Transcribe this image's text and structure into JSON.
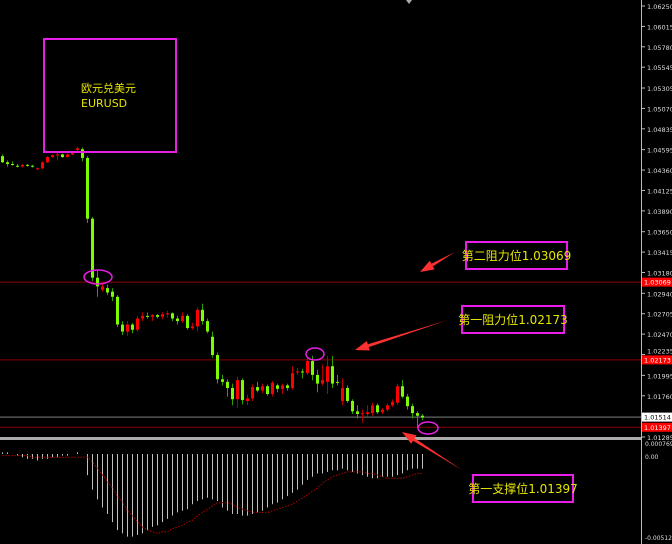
{
  "chart_data": {
    "type": "candlestick",
    "symbol_note": {
      "name_cn": "欧元兑美元",
      "symbol": "EURUSD"
    },
    "colors": {
      "bearish": "#7cfc00",
      "bullish": "#ff0000",
      "background": "#000000",
      "annotation": "#e81ee8",
      "annotation_text": "#e6e600",
      "arrow": "#ff3030",
      "level_line": "#8b0000",
      "histogram": "#c0c0c0",
      "signal": "#b00000"
    },
    "y_ticks": [
      "1.06250",
      "1.06015",
      "1.05780",
      "1.05545",
      "1.05305",
      "1.05070",
      "1.04835",
      "1.04595",
      "1.04360",
      "1.04125",
      "1.03890",
      "1.03650",
      "1.03415",
      "1.03180",
      "1.02940",
      "1.02705",
      "1.02470",
      "1.02235",
      "1.01995",
      "1.01760",
      "1.01285"
    ],
    "ylim": [
      1.0125,
      1.063
    ],
    "price_labels": [
      {
        "value": "1.03069",
        "style": "red"
      },
      {
        "value": "1.02173",
        "style": "red"
      },
      {
        "value": "1.01514",
        "style": "white"
      },
      {
        "value": "1.01397",
        "style": "red"
      }
    ],
    "levels": [
      1.03069,
      1.02173,
      1.01397
    ],
    "current_price": 1.01514,
    "ohlc": [
      [
        1.0452,
        1.0454,
        1.0444,
        1.0445
      ],
      [
        1.0445,
        1.0447,
        1.044,
        1.0443
      ],
      [
        1.0443,
        1.0446,
        1.0441,
        1.0442
      ],
      [
        1.0441,
        1.0443,
        1.0439,
        1.044
      ],
      [
        1.044,
        1.0443,
        1.0439,
        1.0442
      ],
      [
        1.0442,
        1.0443,
        1.044,
        1.0441
      ],
      [
        1.0441,
        1.0442,
        1.0439,
        1.044
      ],
      [
        1.0437,
        1.0439,
        1.0436,
        1.0438
      ],
      [
        1.0438,
        1.0446,
        1.0437,
        1.0445
      ],
      [
        1.0445,
        1.0452,
        1.0444,
        1.0451
      ],
      [
        1.0451,
        1.0454,
        1.045,
        1.0453
      ],
      [
        1.0453,
        1.0456,
        1.0447,
        1.0454
      ],
      [
        1.0454,
        1.0455,
        1.045,
        1.0451
      ],
      [
        1.0451,
        1.0455,
        1.045,
        1.0454
      ],
      [
        1.0454,
        1.0458,
        1.0453,
        1.0457
      ],
      [
        1.0459,
        1.0463,
        1.0456,
        1.0461
      ],
      [
        1.046,
        1.0462,
        1.0446,
        1.045
      ],
      [
        1.045,
        1.0452,
        1.0375,
        1.038
      ],
      [
        1.038,
        1.0382,
        1.0308,
        1.0312
      ],
      [
        1.0312,
        1.032,
        1.029,
        1.0302
      ],
      [
        1.0298,
        1.0306,
        1.0296,
        1.0302
      ],
      [
        1.03,
        1.0304,
        1.0292,
        1.0295
      ],
      [
        1.0296,
        1.03,
        1.0285,
        1.029
      ],
      [
        1.029,
        1.0292,
        1.0255,
        1.0258
      ],
      [
        1.0258,
        1.0262,
        1.0246,
        1.025
      ],
      [
        1.025,
        1.0262,
        1.0245,
        1.0258
      ],
      [
        1.0258,
        1.026,
        1.0248,
        1.0252
      ],
      [
        1.0252,
        1.0268,
        1.025,
        1.0265
      ],
      [
        1.0265,
        1.0272,
        1.0262,
        1.0268
      ],
      [
        1.0268,
        1.0272,
        1.0265,
        1.0267
      ],
      [
        1.0267,
        1.027,
        1.0262,
        1.0269
      ],
      [
        1.0269,
        1.027,
        1.0265,
        1.0267
      ],
      [
        1.0267,
        1.0272,
        1.0264,
        1.027
      ],
      [
        1.027,
        1.0274,
        1.0266,
        1.0271
      ],
      [
        1.0271,
        1.0272,
        1.0262,
        1.0265
      ],
      [
        1.0265,
        1.0268,
        1.0258,
        1.0262
      ],
      [
        1.0262,
        1.0272,
        1.026,
        1.0268
      ],
      [
        1.0268,
        1.027,
        1.0252,
        1.0254
      ],
      [
        1.0254,
        1.026,
        1.0252,
        1.0256
      ],
      [
        1.0256,
        1.0278,
        1.025,
        1.0275
      ],
      [
        1.0275,
        1.0282,
        1.0258,
        1.0262
      ],
      [
        1.0262,
        1.0265,
        1.0248,
        1.025
      ],
      [
        1.0244,
        1.025,
        1.022,
        1.0223
      ],
      [
        1.0223,
        1.0226,
        1.019,
        1.0195
      ],
      [
        1.0195,
        1.02,
        1.0188,
        1.0192
      ],
      [
        1.0192,
        1.0195,
        1.0175,
        1.0185
      ],
      [
        1.0185,
        1.019,
        1.0165,
        1.0172
      ],
      [
        1.0172,
        1.0198,
        1.0162,
        1.0194
      ],
      [
        1.0194,
        1.0196,
        1.0166,
        1.0171
      ],
      [
        1.017,
        1.0177,
        1.0165,
        1.0173
      ],
      [
        1.0173,
        1.0189,
        1.017,
        1.0186
      ],
      [
        1.0186,
        1.0192,
        1.018,
        1.0182
      ],
      [
        1.0182,
        1.019,
        1.0179,
        1.0187
      ],
      [
        1.0187,
        1.0189,
        1.0176,
        1.0178
      ],
      [
        1.0178,
        1.0193,
        1.0175,
        1.0191
      ],
      [
        1.0188,
        1.019,
        1.018,
        1.0184
      ],
      [
        1.0184,
        1.019,
        1.0178,
        1.0188
      ],
      [
        1.0188,
        1.019,
        1.0182,
        1.0185
      ],
      [
        1.0185,
        1.021,
        1.0183,
        1.0202
      ],
      [
        1.0204,
        1.0208,
        1.02,
        1.0204
      ],
      [
        1.0204,
        1.0207,
        1.0196,
        1.0203
      ],
      [
        1.0202,
        1.022,
        1.02,
        1.0216
      ],
      [
        1.0216,
        1.0222,
        1.0194,
        1.02
      ],
      [
        1.02,
        1.0206,
        1.018,
        1.019
      ],
      [
        1.019,
        1.0212,
        1.0188,
        1.0194
      ],
      [
        1.0192,
        1.0222,
        1.0178,
        1.021
      ],
      [
        1.021,
        1.0222,
        1.0185,
        1.019
      ],
      [
        1.0192,
        1.02,
        1.0188,
        1.0191
      ],
      [
        1.017,
        1.0196,
        1.0165,
        1.0185
      ],
      [
        1.0185,
        1.0188,
        1.0168,
        1.017
      ],
      [
        1.017,
        1.0172,
        1.0155,
        1.0158
      ],
      [
        1.0158,
        1.0165,
        1.015,
        1.0155
      ],
      [
        1.0155,
        1.016,
        1.0145,
        1.0156
      ],
      [
        1.0155,
        1.0165,
        1.0152,
        1.0157
      ],
      [
        1.0156,
        1.0168,
        1.0153,
        1.0165
      ],
      [
        1.0165,
        1.0167,
        1.0155,
        1.0157
      ],
      [
        1.0157,
        1.0162,
        1.0155,
        1.016
      ],
      [
        1.016,
        1.0167,
        1.0158,
        1.0165
      ],
      [
        1.0165,
        1.0172,
        1.0163,
        1.0169
      ],
      [
        1.0168,
        1.019,
        1.0166,
        1.0187
      ],
      [
        1.0187,
        1.0194,
        1.0173,
        1.0175
      ],
      [
        1.0175,
        1.0178,
        1.016,
        1.0164
      ],
      [
        1.0164,
        1.0167,
        1.015,
        1.0156
      ],
      [
        1.0156,
        1.0158,
        1.014,
        1.0153
      ],
      [
        1.0153,
        1.0155,
        1.0148,
        1.0151
      ]
    ],
    "indicator": {
      "y_ticks": [
        "0.000769",
        "0.00",
        "-0.005124"
      ],
      "ylim": [
        -0.005124,
        0.000769
      ],
      "histogram": [
        0.0001,
        0.0001,
        0.0,
        -0.0001,
        -0.0002,
        -0.0003,
        -0.0003,
        -0.0004,
        -0.0003,
        -0.0003,
        -0.0002,
        -0.0002,
        -0.0001,
        -0.0001,
        0.0,
        0.0001,
        0.0,
        -0.0013,
        -0.0022,
        -0.0028,
        -0.0033,
        -0.0037,
        -0.0042,
        -0.0047,
        -0.0049,
        -0.0051,
        -0.0051,
        -0.005,
        -0.0049,
        -0.0047,
        -0.0045,
        -0.0044,
        -0.0042,
        -0.004,
        -0.0038,
        -0.0036,
        -0.0035,
        -0.0034,
        -0.0031,
        -0.0029,
        -0.0028,
        -0.0027,
        -0.0028,
        -0.0029,
        -0.0033,
        -0.0035,
        -0.0037,
        -0.0037,
        -0.0038,
        -0.0038,
        -0.0037,
        -0.0036,
        -0.0035,
        -0.0033,
        -0.0031,
        -0.003,
        -0.0028,
        -0.0026,
        -0.0024,
        -0.0022,
        -0.0019,
        -0.0016,
        -0.0014,
        -0.0012,
        -0.0012,
        -0.0011,
        -0.001,
        -0.001,
        -0.0009,
        -0.001,
        -0.0011,
        -0.0012,
        -0.0013,
        -0.0014,
        -0.0015,
        -0.0015,
        -0.0014,
        -0.0014,
        -0.0014,
        -0.0013,
        -0.0012,
        -0.001,
        -0.0009,
        -0.0009,
        -0.0009
      ],
      "signal": [
        -0.0001,
        -0.0001,
        -0.0001,
        -0.0001,
        -0.0001,
        -0.0001,
        -0.0002,
        -0.0002,
        -0.0002,
        -0.0002,
        -0.0002,
        -0.0002,
        -0.0002,
        -0.0002,
        -0.0002,
        -0.0002,
        -0.0002,
        -0.0002,
        -0.0005,
        -0.0009,
        -0.0013,
        -0.0017,
        -0.0021,
        -0.0026,
        -0.003,
        -0.0035,
        -0.0038,
        -0.0042,
        -0.0045,
        -0.0047,
        -0.0048,
        -0.0049,
        -0.0048,
        -0.0048,
        -0.0046,
        -0.0045,
        -0.0044,
        -0.0042,
        -0.0041,
        -0.0038,
        -0.0036,
        -0.0034,
        -0.0032,
        -0.003,
        -0.003,
        -0.003,
        -0.0031,
        -0.0033,
        -0.0034,
        -0.0035,
        -0.0036,
        -0.0036,
        -0.0036,
        -0.0036,
        -0.0035,
        -0.0034,
        -0.0033,
        -0.0032,
        -0.0031,
        -0.0029,
        -0.0027,
        -0.0025,
        -0.0023,
        -0.0021,
        -0.0018,
        -0.0016,
        -0.0014,
        -0.0013,
        -0.0012,
        -0.0011,
        -0.0011,
        -0.0011,
        -0.0011,
        -0.0012,
        -0.0012,
        -0.0013,
        -0.0014,
        -0.0015,
        -0.0015,
        -0.0015,
        -0.0015,
        -0.0014,
        -0.0013,
        -0.0012,
        -0.0012
      ]
    },
    "annotations": {
      "resistance_2": "第二阻力位1.03069",
      "resistance_1": "第一阻力位1.02173",
      "support_1": "第一支撑位1.01397"
    }
  }
}
